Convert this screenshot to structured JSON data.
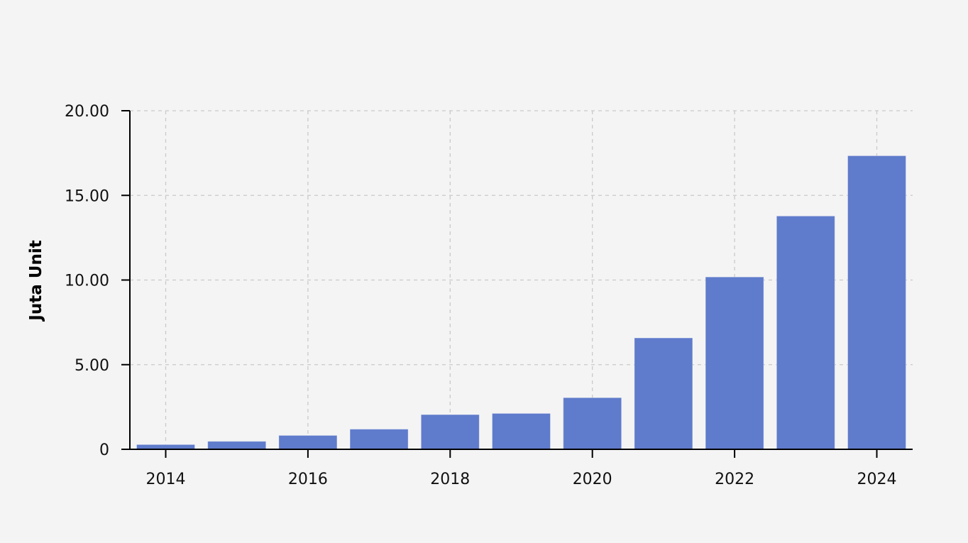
{
  "chart_data": {
    "type": "bar",
    "title": "",
    "xlabel": "",
    "ylabel": "Juta Unit",
    "categories": [
      "2014",
      "2015",
      "2016",
      "2017",
      "2018",
      "2019",
      "2020",
      "2021",
      "2022",
      "2023",
      "2024"
    ],
    "values": [
      0.28,
      0.47,
      0.82,
      1.19,
      2.05,
      2.12,
      3.05,
      6.58,
      10.18,
      13.78,
      17.34
    ],
    "x_ticks": [
      "2014",
      "2016",
      "2018",
      "2020",
      "2022",
      "2024"
    ],
    "y_ticks": [
      {
        "value": 0,
        "label": "0"
      },
      {
        "value": 5,
        "label": "5.00"
      },
      {
        "value": 10,
        "label": "10.00"
      },
      {
        "value": 15,
        "label": "15.00"
      },
      {
        "value": 20,
        "label": "20.00"
      }
    ],
    "ylim": [
      0,
      20
    ],
    "grid": true,
    "bar_color": "#5f7bcb"
  }
}
